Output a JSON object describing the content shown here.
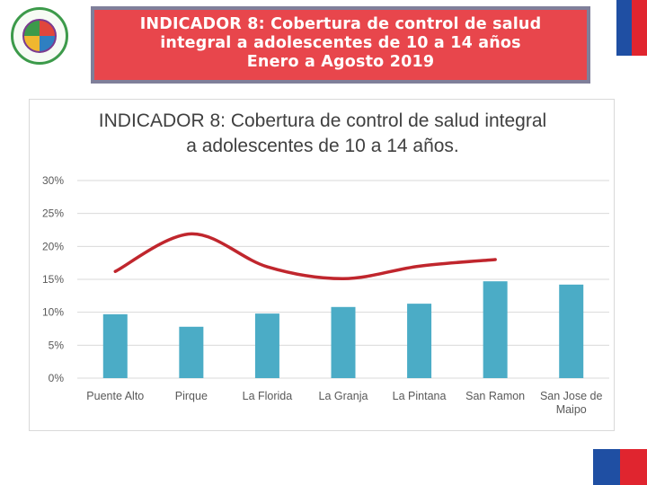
{
  "header": {
    "title_lines": [
      "INDICADOR 8: Cobertura de control de salud",
      "integral a adolescentes de 10 a 14 años",
      "Enero a Agosto 2019"
    ]
  },
  "colors": {
    "banner": "#e8464c",
    "bar": "#4bacc6",
    "line": "#c0262d",
    "flag_blue": "#1f4fa3",
    "flag_red": "#e0252f"
  },
  "chart_data": {
    "type": "bar",
    "title_lines": [
      "INDICADOR 8: Cobertura de control de salud integral",
      "a adolescentes de 10 a 14 años."
    ],
    "categories": [
      "Puente Alto",
      "Pirque",
      "La Florida",
      "La Granja",
      "La Pintana",
      "San Ramon",
      "San Jose de Maipo"
    ],
    "category_lines": [
      [
        "Puente Alto"
      ],
      [
        "Pirque"
      ],
      [
        "La Florida"
      ],
      [
        "La Granja"
      ],
      [
        "La Pintana"
      ],
      [
        "San Ramon"
      ],
      [
        "San Jose de",
        "Maipo"
      ]
    ],
    "values": [
      9.7,
      7.8,
      9.8,
      10.8,
      11.3,
      14.7,
      14.2
    ],
    "line_series": {
      "x": [
        0,
        1,
        2,
        3,
        4,
        5
      ],
      "values": [
        16.2,
        21.9,
        16.9,
        15.1,
        17.0,
        18.0
      ]
    },
    "yticks": [
      "0%",
      "5%",
      "10%",
      "15%",
      "20%",
      "25%",
      "30%"
    ],
    "ylim": [
      0,
      30
    ],
    "grid": true,
    "legend": "none"
  }
}
